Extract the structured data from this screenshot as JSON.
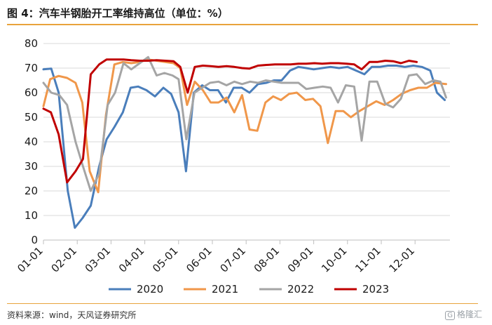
{
  "header": {
    "title": "图 4：汽车半钢胎开工率维持高位（单位：%）"
  },
  "footer": {
    "source": "资料来源：wind，天风证券研究所",
    "watermark": "格隆汇",
    "watermark_glyph": "G"
  },
  "chart_data": {
    "type": "line",
    "title": "",
    "xlabel": "",
    "ylabel": "",
    "ylim": [
      0,
      80
    ],
    "yticks": [
      0,
      10,
      20,
      30,
      40,
      50,
      60,
      70,
      80
    ],
    "xlim": [
      1,
      13
    ],
    "xticks": [
      {
        "pos": 1,
        "label": "01-01"
      },
      {
        "pos": 2,
        "label": "02-01"
      },
      {
        "pos": 3,
        "label": "03-01"
      },
      {
        "pos": 4,
        "label": "04-01"
      },
      {
        "pos": 5,
        "label": "05-01"
      },
      {
        "pos": 6,
        "label": "06-01"
      },
      {
        "pos": 7,
        "label": "07-01"
      },
      {
        "pos": 8,
        "label": "08-01"
      },
      {
        "pos": 9,
        "label": "09-01"
      },
      {
        "pos": 10,
        "label": "10-01"
      },
      {
        "pos": 11,
        "label": "11-01"
      },
      {
        "pos": 12,
        "label": "12-01"
      }
    ],
    "grid": true,
    "legend_position": "bottom",
    "series": [
      {
        "name": "2020",
        "color": "#4a7ebb",
        "points": [
          [
            1.0,
            69.5
          ],
          [
            1.23,
            69.8
          ],
          [
            1.45,
            60
          ],
          [
            1.72,
            20
          ],
          [
            1.93,
            5
          ],
          [
            2.16,
            9
          ],
          [
            2.4,
            14
          ],
          [
            2.65,
            30
          ],
          [
            2.87,
            41
          ],
          [
            3.1,
            46
          ],
          [
            3.35,
            52
          ],
          [
            3.58,
            62
          ],
          [
            3.8,
            62.5
          ],
          [
            4.05,
            61
          ],
          [
            4.3,
            58.5
          ],
          [
            4.55,
            62
          ],
          [
            4.78,
            59.5
          ],
          [
            5.0,
            52
          ],
          [
            5.22,
            28
          ],
          [
            5.45,
            60
          ],
          [
            5.7,
            63
          ],
          [
            5.93,
            61
          ],
          [
            6.17,
            61
          ],
          [
            6.4,
            56
          ],
          [
            6.63,
            62
          ],
          [
            6.87,
            62
          ],
          [
            7.1,
            60
          ],
          [
            7.35,
            63.5
          ],
          [
            7.6,
            64
          ],
          [
            7.82,
            65
          ],
          [
            8.05,
            65
          ],
          [
            8.3,
            69
          ],
          [
            8.55,
            70.5
          ],
          [
            8.78,
            70
          ],
          [
            9.0,
            69.5
          ],
          [
            9.25,
            70
          ],
          [
            9.5,
            70.5
          ],
          [
            9.75,
            70
          ],
          [
            10.0,
            70.5
          ],
          [
            10.25,
            69
          ],
          [
            10.5,
            67.5
          ],
          [
            10.72,
            70.5
          ],
          [
            10.95,
            70.5
          ],
          [
            11.2,
            71
          ],
          [
            11.45,
            71
          ],
          [
            11.7,
            70.5
          ],
          [
            11.95,
            71
          ],
          [
            12.2,
            70.5
          ],
          [
            12.45,
            69
          ],
          [
            12.65,
            60
          ],
          [
            12.88,
            57
          ]
        ]
      },
      {
        "name": "2021",
        "color": "#f0974a",
        "points": [
          [
            1.0,
            54.5
          ],
          [
            1.2,
            65.5
          ],
          [
            1.45,
            66.8
          ],
          [
            1.7,
            66
          ],
          [
            1.95,
            64
          ],
          [
            2.15,
            56
          ],
          [
            2.37,
            28
          ],
          [
            2.62,
            19.5
          ],
          [
            2.85,
            51
          ],
          [
            3.1,
            71.5
          ],
          [
            3.35,
            72.5
          ],
          [
            3.6,
            72
          ],
          [
            3.85,
            72.5
          ],
          [
            4.1,
            73.5
          ],
          [
            4.35,
            73
          ],
          [
            4.6,
            72.5
          ],
          [
            4.85,
            72
          ],
          [
            5.05,
            70
          ],
          [
            5.25,
            55
          ],
          [
            5.48,
            64.5
          ],
          [
            5.72,
            61
          ],
          [
            5.95,
            56
          ],
          [
            6.18,
            56
          ],
          [
            6.42,
            58
          ],
          [
            6.65,
            52
          ],
          [
            6.88,
            59
          ],
          [
            7.1,
            45
          ],
          [
            7.33,
            44.5
          ],
          [
            7.57,
            56
          ],
          [
            7.8,
            58.5
          ],
          [
            8.03,
            57
          ],
          [
            8.27,
            59.5
          ],
          [
            8.5,
            60
          ],
          [
            8.75,
            57
          ],
          [
            8.98,
            57.5
          ],
          [
            9.2,
            54.5
          ],
          [
            9.42,
            39.5
          ],
          [
            9.65,
            52.5
          ],
          [
            9.88,
            52.5
          ],
          [
            10.1,
            50
          ],
          [
            10.35,
            52.5
          ],
          [
            10.6,
            54.5
          ],
          [
            10.85,
            56.5
          ],
          [
            11.1,
            55
          ],
          [
            11.35,
            57
          ],
          [
            11.6,
            59.5
          ],
          [
            11.85,
            61
          ],
          [
            12.1,
            62
          ],
          [
            12.35,
            62
          ],
          [
            12.6,
            64
          ],
          [
            12.92,
            63.5
          ]
        ]
      },
      {
        "name": "2022",
        "color": "#a5a5a5",
        "points": [
          [
            1.0,
            64
          ],
          [
            1.23,
            60
          ],
          [
            1.47,
            59
          ],
          [
            1.7,
            55
          ],
          [
            1.95,
            40
          ],
          [
            2.17,
            30
          ],
          [
            2.4,
            20
          ],
          [
            2.65,
            27
          ],
          [
            2.9,
            55
          ],
          [
            3.12,
            60
          ],
          [
            3.37,
            72
          ],
          [
            3.6,
            69.5
          ],
          [
            3.85,
            72
          ],
          [
            4.1,
            74.5
          ],
          [
            4.35,
            67
          ],
          [
            4.58,
            68
          ],
          [
            4.82,
            67
          ],
          [
            5.0,
            65.5
          ],
          [
            5.23,
            41
          ],
          [
            5.47,
            60
          ],
          [
            5.7,
            62
          ],
          [
            5.93,
            64
          ],
          [
            6.18,
            64.5
          ],
          [
            6.42,
            63
          ],
          [
            6.65,
            64.5
          ],
          [
            6.88,
            63.5
          ],
          [
            7.12,
            64.5
          ],
          [
            7.35,
            64
          ],
          [
            7.58,
            65
          ],
          [
            7.82,
            64.5
          ],
          [
            8.05,
            64
          ],
          [
            8.3,
            64
          ],
          [
            8.55,
            64
          ],
          [
            8.78,
            61.5
          ],
          [
            9.02,
            62
          ],
          [
            9.27,
            62.5
          ],
          [
            9.5,
            62
          ],
          [
            9.72,
            56
          ],
          [
            9.95,
            63
          ],
          [
            10.2,
            62.5
          ],
          [
            10.42,
            40.5
          ],
          [
            10.65,
            64.5
          ],
          [
            10.88,
            64.5
          ],
          [
            11.12,
            55.5
          ],
          [
            11.35,
            54
          ],
          [
            11.58,
            57.5
          ],
          [
            11.82,
            67
          ],
          [
            12.05,
            67.5
          ],
          [
            12.3,
            63.5
          ],
          [
            12.55,
            65
          ],
          [
            12.75,
            64.5
          ],
          [
            12.92,
            58
          ]
        ]
      },
      {
        "name": "2023",
        "color": "#c00000",
        "points": [
          [
            1.0,
            53.5
          ],
          [
            1.22,
            52
          ],
          [
            1.45,
            43
          ],
          [
            1.7,
            23.5
          ],
          [
            1.95,
            28
          ],
          [
            2.17,
            33
          ],
          [
            2.4,
            67.5
          ],
          [
            2.65,
            71.5
          ],
          [
            2.87,
            73.5
          ],
          [
            3.12,
            73.5
          ],
          [
            3.37,
            73.5
          ],
          [
            3.6,
            73.2
          ],
          [
            3.85,
            73
          ],
          [
            4.1,
            73
          ],
          [
            4.35,
            73.2
          ],
          [
            4.6,
            73
          ],
          [
            4.85,
            72.8
          ],
          [
            5.05,
            70.5
          ],
          [
            5.27,
            60
          ],
          [
            5.48,
            70.5
          ],
          [
            5.72,
            71
          ],
          [
            5.95,
            70.8
          ],
          [
            6.18,
            70.5
          ],
          [
            6.42,
            70.8
          ],
          [
            6.65,
            70.5
          ],
          [
            6.88,
            70
          ],
          [
            7.1,
            69.8
          ],
          [
            7.35,
            71
          ],
          [
            7.6,
            71.3
          ],
          [
            7.85,
            71.5
          ],
          [
            8.08,
            71.5
          ],
          [
            8.32,
            71.5
          ],
          [
            8.55,
            71.8
          ],
          [
            8.78,
            71.8
          ],
          [
            9.02,
            72
          ],
          [
            9.25,
            71.8
          ],
          [
            9.5,
            72
          ],
          [
            9.73,
            72
          ],
          [
            9.97,
            71.8
          ],
          [
            10.2,
            71.5
          ],
          [
            10.42,
            69.5
          ],
          [
            10.65,
            72.5
          ],
          [
            10.88,
            72.5
          ],
          [
            11.12,
            73
          ],
          [
            11.35,
            72.8
          ],
          [
            11.58,
            72
          ],
          [
            11.82,
            73
          ],
          [
            12.05,
            72.5
          ]
        ]
      }
    ]
  }
}
